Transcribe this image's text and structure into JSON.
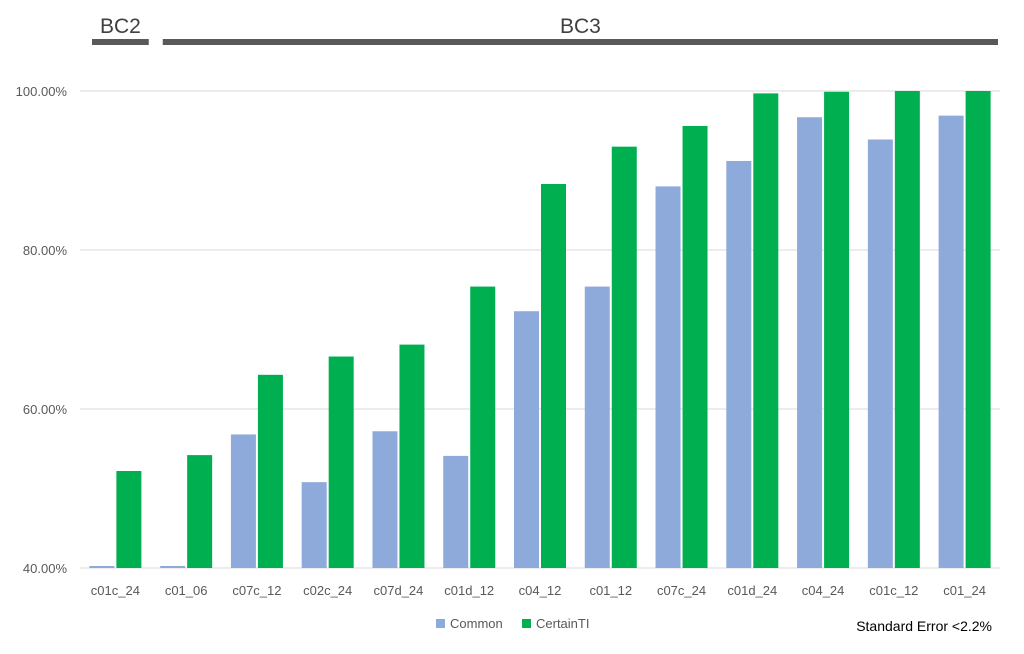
{
  "chart_data": {
    "type": "bar",
    "group_labels": [
      {
        "label": "BC2",
        "from": 0,
        "to": 0
      },
      {
        "label": "BC3",
        "from": 1,
        "to": 12
      }
    ],
    "categories": [
      "c01c_24",
      "c01_06",
      "c07c_12",
      "c02c_24",
      "c07d_24",
      "c01d_12",
      "c04_12",
      "c01_12",
      "c07c_24",
      "c01d_24",
      "c04_24",
      "c01c_12",
      "c01_24"
    ],
    "series": [
      {
        "name": "Common",
        "color": "#8eaadb",
        "values": [
          40.0,
          40.0,
          56.8,
          50.8,
          57.2,
          54.1,
          72.3,
          75.4,
          88.0,
          91.2,
          96.7,
          93.9,
          96.9
        ]
      },
      {
        "name": "CertainTI",
        "color": "#00b050",
        "values": [
          52.2,
          54.2,
          64.3,
          66.6,
          68.1,
          75.4,
          88.3,
          93.0,
          95.6,
          99.7,
          99.9,
          100.0,
          100.0
        ]
      }
    ],
    "ylim": [
      40,
      100
    ],
    "yticks": [
      40,
      60,
      80,
      100
    ],
    "ytick_labels": [
      "40.00%",
      "60.00%",
      "80.00%",
      "100.00%"
    ],
    "grid": true,
    "legend_position": "bottom",
    "annotation": "Standard Error <2.2%"
  }
}
